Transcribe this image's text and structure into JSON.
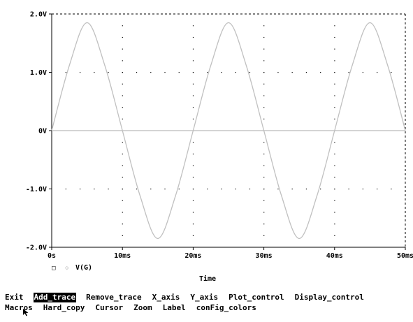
{
  "chart_data": {
    "type": "line",
    "x": [
      0,
      2.5,
      5,
      7.5,
      10,
      12.5,
      15,
      17.5,
      20,
      22.5,
      25,
      27.5,
      30,
      32.5,
      35,
      37.5,
      40,
      42.5,
      45,
      47.5,
      50
    ],
    "series": [
      {
        "name": "V(G)",
        "color": "#c0c0c0",
        "values": [
          0,
          1.12,
          1.85,
          1.12,
          0,
          -1.12,
          -1.85,
          -1.12,
          0,
          1.12,
          1.85,
          1.12,
          0,
          -1.12,
          -1.85,
          -1.12,
          0,
          1.12,
          1.85,
          1.12,
          0
        ]
      }
    ],
    "xlabel": "Time",
    "ylabel": "",
    "xlim": [
      0,
      50
    ],
    "ylim": [
      -2.0,
      2.0
    ],
    "x_tick_values": [
      0,
      10,
      20,
      30,
      40,
      50
    ],
    "x_tick_labels": [
      "0s",
      "10ms",
      "20ms",
      "30ms",
      "40ms",
      "50ms"
    ],
    "y_tick_values": [
      2.0,
      1.0,
      0,
      -1.0,
      -2.0
    ],
    "y_tick_labels": [
      "2.0V",
      "1.0V",
      "0V",
      "-1.0V",
      "-2.0V"
    ],
    "zero_line": true,
    "grid": "dotted",
    "legend": {
      "marker": "□",
      "symbol": "◇",
      "label": "V(G)",
      "placement": "bottom-left"
    }
  },
  "menu": {
    "row1": [
      "Exit",
      "Add_trace",
      "Remove_trace",
      "X_axis",
      "Y_axis",
      "Plot_control",
      "Display_control"
    ],
    "row2": [
      "Macros",
      "Hard_copy",
      "Cursor",
      "Zoom",
      "Label",
      "conFig_colors"
    ],
    "selected": "Add_trace"
  },
  "colors": {
    "background": "#ffffff",
    "trace": "#c0c0c0",
    "zero_line": "#a8a8a8",
    "axis": "#000000",
    "menu_highlight_bg": "#000000",
    "menu_highlight_fg": "#ffffff"
  },
  "icons": {
    "cursor": "mouse-pointer-icon"
  }
}
